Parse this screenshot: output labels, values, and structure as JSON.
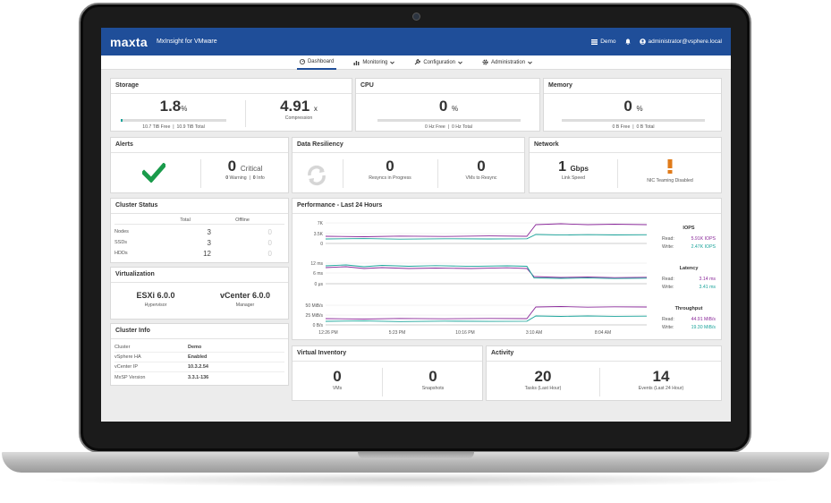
{
  "app": {
    "logo": "maxta",
    "name": "MxInsight for VMware"
  },
  "topbar": {
    "demo": "Demo",
    "user": "administrator@vsphere.local"
  },
  "nav": [
    {
      "label": "Dashboard",
      "icon": "dashboard-icon"
    },
    {
      "label": "Monitoring",
      "icon": "chart-icon"
    },
    {
      "label": "Configuration",
      "icon": "wrench-icon"
    },
    {
      "label": "Administration",
      "icon": "gear-icon"
    }
  ],
  "storage": {
    "title": "Storage",
    "used_value": "1.8",
    "used_unit": "%",
    "used_fraction": 0.018,
    "free_text": "10.7 TiB Free",
    "total_text": "10.9 TiB Total",
    "compression_value": "4.91",
    "compression_unit": "x",
    "compression_label": "Compression"
  },
  "cpu": {
    "title": "CPU",
    "value": "0",
    "unit": "%",
    "free_text": "0 Hz Free",
    "total_text": "0 Hz Total"
  },
  "memory": {
    "title": "Memory",
    "value": "0",
    "unit": "%",
    "free_text": "0 B Free",
    "total_text": "0 B Total"
  },
  "alerts": {
    "title": "Alerts",
    "critical_count": "0",
    "critical_label": "Critical",
    "warning_count": "0",
    "warning_label": "Warning",
    "info_count": "0",
    "info_label": "Info",
    "status_color": "#1a9b4b"
  },
  "resiliency": {
    "title": "Data Resiliency",
    "resyncs_value": "0",
    "resyncs_label": "Resyncs in Progress",
    "vms_value": "0",
    "vms_label": "VMs to Resync"
  },
  "network": {
    "title": "Network",
    "speed_value": "1",
    "speed_unit": "Gbps",
    "speed_label": "Link Speed",
    "teaming_label": "NIC Teaming Disabled",
    "warning_color": "#e07b1a"
  },
  "cluster_status": {
    "title": "Cluster Status",
    "col_total": "Total",
    "col_offline": "Offline",
    "rows": [
      {
        "label": "Nodes",
        "total": "3",
        "offline": "0"
      },
      {
        "label": "SSDs",
        "total": "3",
        "offline": "0"
      },
      {
        "label": "HDDs",
        "total": "12",
        "offline": "0"
      }
    ]
  },
  "virtualization": {
    "title": "Virtualization",
    "esxi_value": "ESXi 6.0.0",
    "esxi_label": "Hypervisor",
    "vcenter_value": "vCenter 6.0.0",
    "vcenter_label": "Manager"
  },
  "cluster_info": {
    "title": "Cluster Info",
    "rows": [
      {
        "label": "Cluster",
        "value": "Demo"
      },
      {
        "label": "vSphere HA",
        "value": "Enabled"
      },
      {
        "label": "vCenter IP",
        "value": "10.3.2.54"
      },
      {
        "label": "MxSP Version",
        "value": "3.3.1-136"
      }
    ]
  },
  "performance": {
    "title": "Performance - Last 24 Hours",
    "x_ticks": [
      "12:26 PM",
      "5:23 PM",
      "10:16 PM",
      "3:10 AM",
      "8:04 AM"
    ],
    "iops": {
      "title": "IOPS",
      "read_label": "Read:",
      "read_value": "5.91K IOPS",
      "write_label": "Write:",
      "write_value": "2.47K IOPS",
      "y_ticks": [
        "7K",
        "3.5K",
        "0"
      ]
    },
    "latency": {
      "title": "Latency",
      "read_label": "Read:",
      "read_value": "3.14 ms",
      "write_label": "Write:",
      "write_value": "3.41 ms",
      "y_ticks": [
        "12 ms",
        "6 ms",
        "0 μs"
      ]
    },
    "throughput": {
      "title": "Throughput",
      "read_label": "Read:",
      "read_value": "44.91 MiB/s",
      "write_label": "Write:",
      "write_value": "19.30 MiB/s",
      "y_ticks": [
        "50 MiB/s",
        "25 MiB/s",
        "0 B/s"
      ]
    },
    "read_color": "#8a2a9a",
    "write_color": "#1aa39a"
  },
  "virtual_inventory": {
    "title": "Virtual Inventory",
    "vms_value": "0",
    "vms_label": "VMs",
    "snapshots_value": "0",
    "snapshots_label": "Snapshots"
  },
  "activity": {
    "title": "Activity",
    "tasks_value": "20",
    "tasks_label": "Tasks (Last Hour)",
    "events_value": "14",
    "events_label": "Events (Last 24 Hour)"
  },
  "colors": {
    "brand": "#1f4e99",
    "accent": "#1aa39a",
    "read": "#8a2a9a"
  }
}
